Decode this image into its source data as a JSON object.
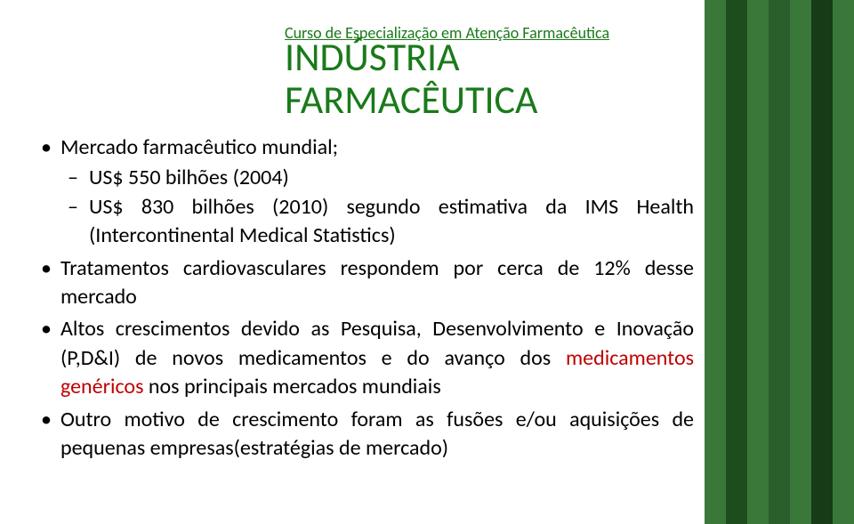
{
  "header": "Curso de Especialização em Atenção Farmacêutica",
  "title_line1": "INDÚSTRIA",
  "title_line2": "FARMACÊUTICA",
  "stripes": [
    "#3a783a",
    "#1d4d1d",
    "#3a783a",
    "#2a5e2a",
    "#3a783a",
    "#163b16",
    "#3a783a"
  ],
  "bullets": {
    "b1": {
      "text": "Mercado farmacêutico mundial;",
      "sub": {
        "s1": "US$ 550 bilhões (2004)",
        "s2": "US$ 830 bilhões (2010) segundo estimativa da IMS Health (Intercontinental Medical Statistics)"
      }
    },
    "b2": "Tratamentos cardiovasculares respondem por cerca de 12% desse mercado",
    "b3": {
      "pre": "Altos crescimentos devido as Pesquisa, Desenvolvimento e Inovação (P,D&I) de novos medicamentos e do avanço dos ",
      "red": "medicamentos genéricos",
      "post": " nos principais mercados mundiais"
    },
    "b4": "Outro motivo de crescimento foram as fusões e/ou aquisições de pequenas empresas(estratégias de mercado)"
  }
}
